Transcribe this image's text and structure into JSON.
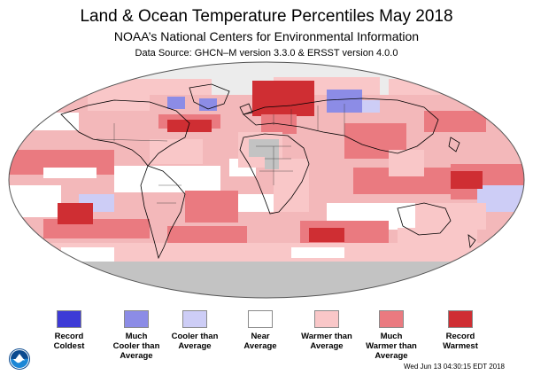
{
  "header": {
    "title": "Land & Ocean Temperature Percentiles May 2018",
    "subtitle": "NOAA’s National Centers for Environmental Information",
    "source": "Data Source: GHCN–M version 3.3.0 & ERSST version 4.0.0"
  },
  "legend": [
    {
      "label": "Record\nColdest",
      "color": "#3d3ad6"
    },
    {
      "label": "Much\nCooler than\nAverage",
      "color": "#8c8ce6"
    },
    {
      "label": "Cooler than\nAverage",
      "color": "#cdcdf6"
    },
    {
      "label": "Near\nAverage",
      "color": "#ffffff"
    },
    {
      "label": "Warmer than\nAverage",
      "color": "#f9c7c8"
    },
    {
      "label": "Much\nWarmer than\nAverage",
      "color": "#ea7a80"
    },
    {
      "label": "Record\nWarmest",
      "color": "#cf2e33"
    }
  ],
  "map_colors": {
    "missing": "#c3c3c3",
    "ocean_default": "#f3b8ba",
    "coast": "#000000"
  },
  "footer": {
    "timestamp": "Wed Jun 13 04:30:15 EDT 2018"
  }
}
